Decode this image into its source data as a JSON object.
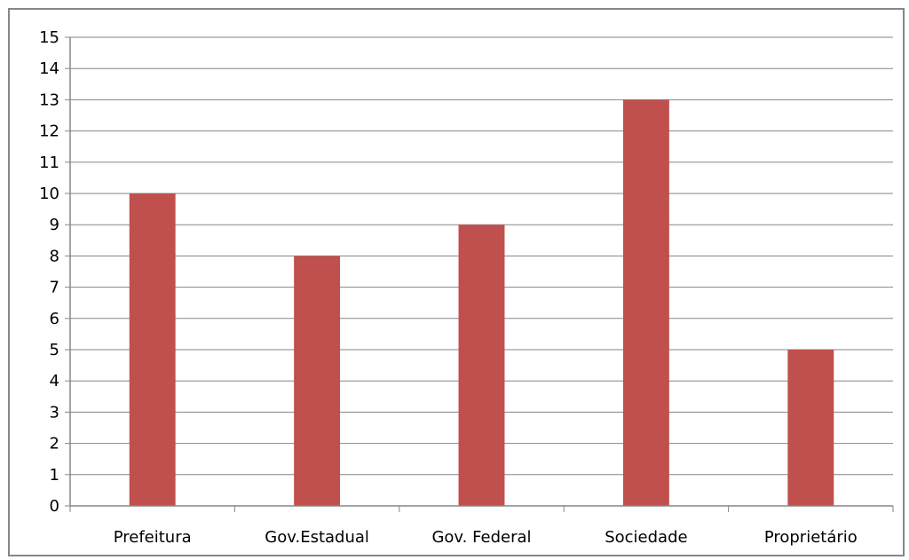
{
  "chart_data": {
    "type": "bar",
    "categories": [
      "Prefeitura",
      "Gov.Estadual",
      "Gov. Federal",
      "Sociedade",
      "Proprietário"
    ],
    "values": [
      10,
      8,
      9,
      13,
      5
    ],
    "ylim": [
      0,
      15
    ],
    "yticks": [
      0,
      1,
      2,
      3,
      4,
      5,
      6,
      7,
      8,
      9,
      10,
      11,
      12,
      13,
      14,
      15
    ],
    "grid": true,
    "legend": "none",
    "colors": {
      "bar": "#c0504d",
      "grid": "#868686",
      "axis": "#868686",
      "frame": "#868686"
    }
  }
}
